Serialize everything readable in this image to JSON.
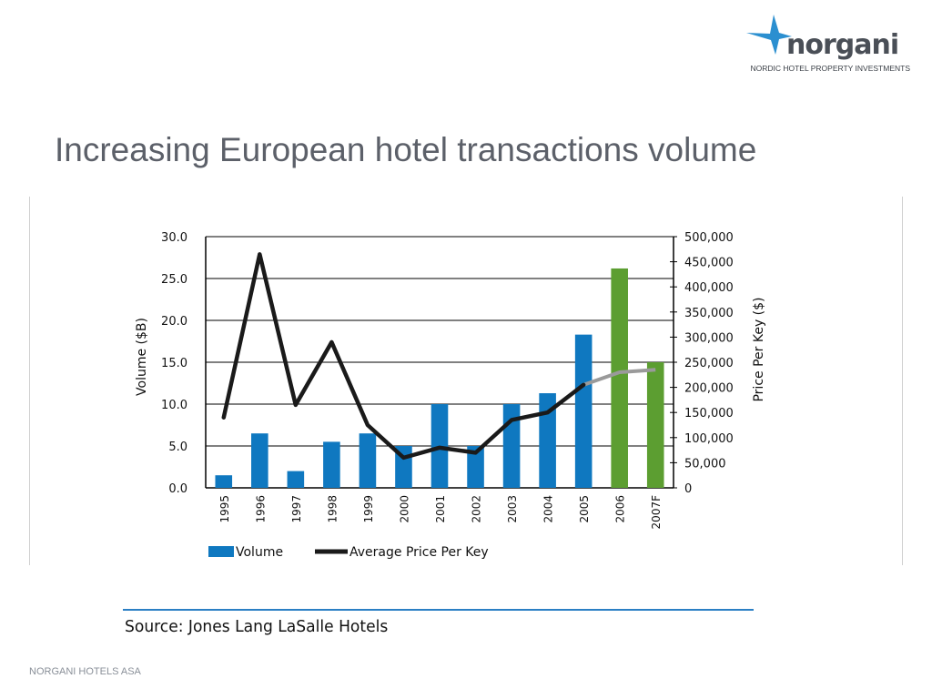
{
  "logo": {
    "word": "norgani",
    "tagline": "NORDIC HOTEL PROPERTY INVESTMENTS",
    "accent": "#2b8fd0"
  },
  "slide": {
    "title": "Increasing European hotel transactions volume",
    "source": "Source: Jones Lang LaSalle Hotels",
    "footer": "NORGANI HOTELS ASA"
  },
  "colors": {
    "volume_bar": "#0f78c0",
    "forecast_bar": "#5c9e31",
    "price_line": "#1a1a1a",
    "price_line_forecast": "#9a9a9a",
    "title": "#5c6069",
    "source_rule": "#2b7fc4"
  },
  "chart_data": {
    "type": "bar",
    "categories": [
      "1995",
      "1996",
      "1997",
      "1998",
      "1999",
      "2000",
      "2001",
      "2002",
      "2003",
      "2004",
      "2005",
      "2006",
      "2007F"
    ],
    "series": [
      {
        "name": "Volume",
        "type": "bar",
        "axis": "left",
        "values": [
          1.5,
          6.5,
          2.0,
          5.5,
          6.5,
          5.0,
          10.0,
          5.0,
          10.0,
          11.3,
          18.3,
          26.2,
          15.0
        ]
      },
      {
        "name": "Average Price Per Key",
        "type": "line",
        "axis": "right",
        "values": [
          140000,
          465000,
          165000,
          290000,
          125000,
          60000,
          80000,
          70000,
          135000,
          150000,
          205000,
          230000,
          235000
        ]
      }
    ],
    "forecast_categories": [
      "2006",
      "2007F"
    ],
    "ylabel": "Volume ($B)",
    "ylim": [
      0,
      30
    ],
    "yticks": [
      "30.0",
      "25.0",
      "20.0",
      "15.0",
      "10.0",
      "5.0",
      "0.0"
    ],
    "y2label": "Price Per Key ($)",
    "y2lim": [
      0,
      500000
    ],
    "y2ticks": [
      "500,000",
      "450,000",
      "400,000",
      "350,000",
      "300,000",
      "250,000",
      "200,000",
      "150,000",
      "100,000",
      "50,000",
      "0"
    ],
    "grid": true,
    "legend": "bottom"
  }
}
